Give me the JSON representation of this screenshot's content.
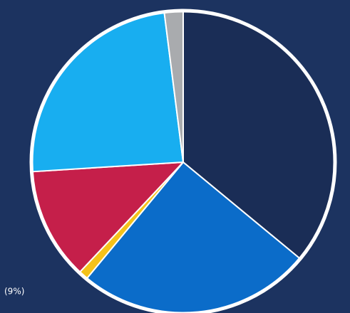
{
  "chart_data": {
    "type": "pie",
    "values": [
      36,
      25,
      1,
      12,
      24,
      2
    ],
    "colors": [
      "#1a2d56",
      "#0b6cc9",
      "#f4c21a",
      "#c51f4a",
      "#18aef0",
      "#a9abae"
    ],
    "annotation": "(9%)"
  }
}
